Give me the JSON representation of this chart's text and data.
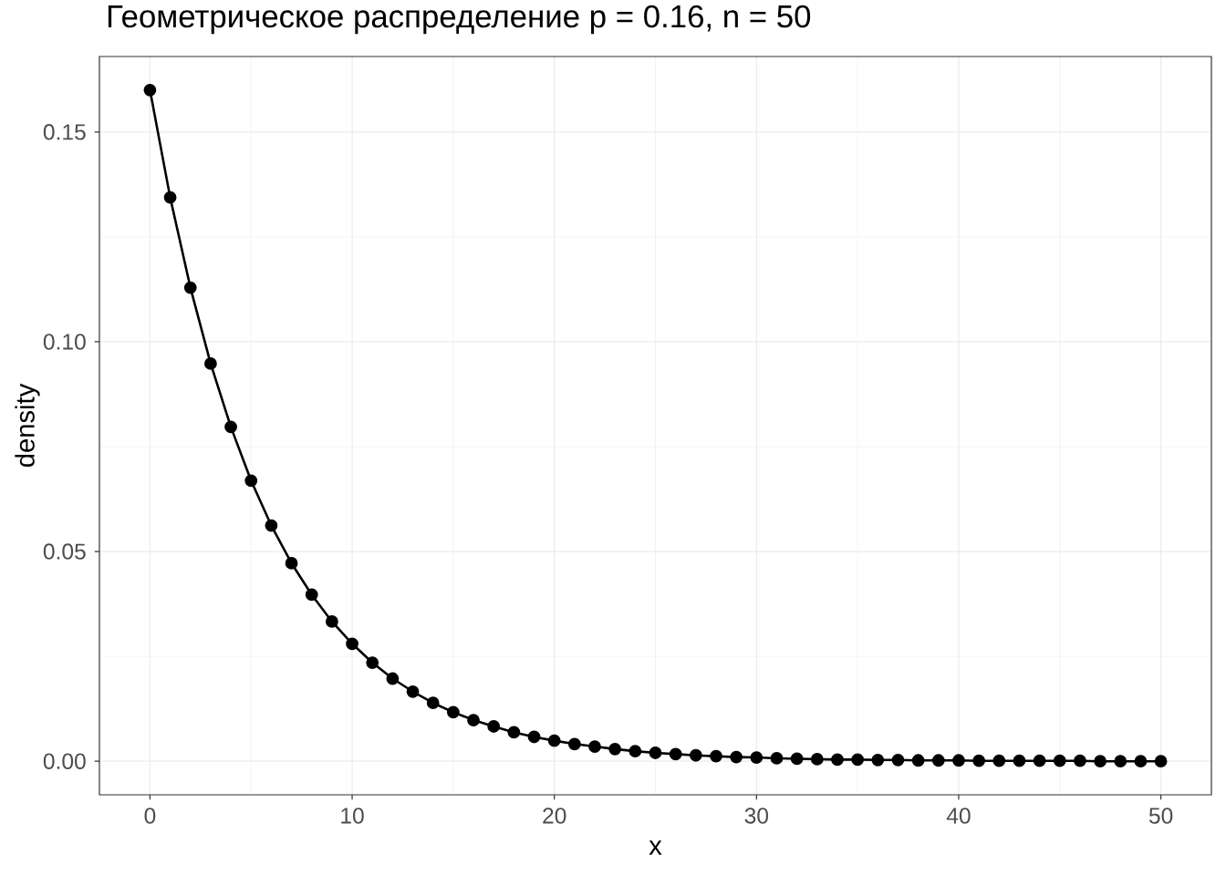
{
  "chart_data": {
    "type": "line",
    "title": "Геометрическое распределение p = 0.16, n = 50",
    "xlabel": "x",
    "ylabel": "density",
    "x": [
      0,
      1,
      2,
      3,
      4,
      5,
      6,
      7,
      8,
      9,
      10,
      11,
      12,
      13,
      14,
      15,
      16,
      17,
      18,
      19,
      20,
      21,
      22,
      23,
      24,
      25,
      26,
      27,
      28,
      29,
      30,
      31,
      32,
      33,
      34,
      35,
      36,
      37,
      38,
      39,
      40,
      41,
      42,
      43,
      44,
      45,
      46,
      47,
      48,
      49,
      50
    ],
    "series": [
      {
        "color": "#000000",
        "values": [
          0.16,
          0.1344,
          0.1129,
          0.0948,
          0.0797,
          0.0669,
          0.0562,
          0.0472,
          0.0397,
          0.0333,
          0.028,
          0.0235,
          0.0197,
          0.0166,
          0.0139,
          0.0117,
          0.0098,
          0.0083,
          0.0069,
          0.0058,
          0.0049,
          0.0041,
          0.0035,
          0.0029,
          0.0024,
          0.002,
          0.0017,
          0.0014,
          0.0012,
          0.001,
          0.0009,
          0.0007,
          0.0006,
          0.0005,
          0.0004,
          0.0004,
          0.0003,
          0.0003,
          0.0002,
          0.0002,
          0.0002,
          0.0001,
          0.0001,
          0.0001,
          0.0001,
          0.0001,
          0.0001,
          0.0,
          0.0,
          0.0,
          0.0
        ]
      }
    ],
    "xlim": [
      -2.5,
      52.5
    ],
    "ylim": [
      -0.008,
      0.168
    ],
    "xticks": [
      0,
      {
        "value": 5,
        "label": null
      },
      10,
      {
        "value": 15,
        "label": null
      },
      20,
      {
        "value": 25,
        "label": null
      },
      30,
      {
        "value": 35,
        "label": null
      },
      40,
      {
        "value": 45,
        "label": null
      },
      50
    ],
    "yticks": [
      {
        "value": 0,
        "label": "0.00"
      },
      {
        "value": 0.025,
        "label": null
      },
      {
        "value": 0.05,
        "label": "0.05"
      },
      {
        "value": 0.075,
        "label": null
      },
      {
        "value": 0.1,
        "label": "0.10"
      },
      {
        "value": 0.125,
        "label": null
      },
      {
        "value": 0.15,
        "label": "0.15"
      }
    ],
    "grid": true,
    "marker": "circle",
    "line_style": "solid"
  }
}
